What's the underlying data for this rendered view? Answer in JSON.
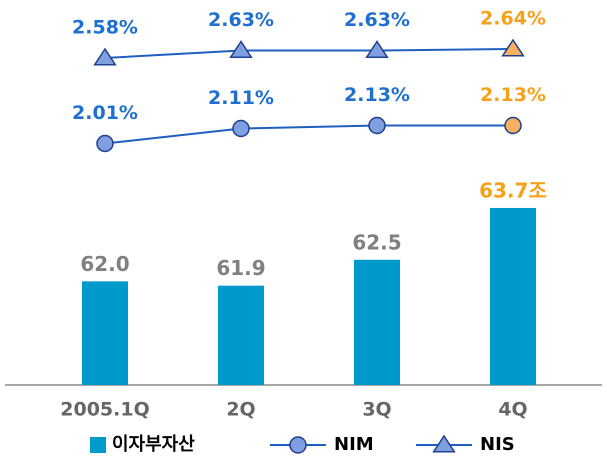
{
  "chart_data": {
    "type": "bar_line",
    "categories": [
      "2005.1Q",
      "2Q",
      "3Q",
      "4Q"
    ],
    "ylim": [
      59.6,
      64.0
    ],
    "y2lim": [
      1.9,
      2.7
    ],
    "series": [
      {
        "name": "이자부자산",
        "type": "bar",
        "axis": "y",
        "color": "#0099cc",
        "values": [
          62.0,
          61.9,
          62.5,
          63.7
        ],
        "value_labels": [
          "62.0",
          "61.9",
          "62.5",
          "63.7조"
        ],
        "label_colors": [
          "#808080",
          "#808080",
          "#808080",
          "#f7a01a"
        ]
      },
      {
        "name": "NIM",
        "type": "line",
        "marker": "circle",
        "axis": "y2",
        "color": "#1f5fbf",
        "values": [
          2.01,
          2.11,
          2.13,
          2.13
        ],
        "value_labels": [
          "2.01%",
          "2.11%",
          "2.13%",
          "2.13%"
        ],
        "marker_colors": [
          "#7f9fe0",
          "#7f9fe0",
          "#7f9fe0",
          "#f7b060"
        ],
        "label_colors": [
          "#1f6fd0",
          "#1f6fd0",
          "#1f6fd0",
          "#f7a01a"
        ]
      },
      {
        "name": "NIS",
        "type": "line",
        "marker": "triangle",
        "axis": "y2",
        "color": "#1f5fbf",
        "values": [
          2.58,
          2.63,
          2.63,
          2.64
        ],
        "value_labels": [
          "2.58%",
          "2.63%",
          "2.63%",
          "2.64%"
        ],
        "marker_colors": [
          "#7f9fe0",
          "#7f9fe0",
          "#7f9fe0",
          "#f7b060"
        ],
        "label_colors": [
          "#1f6fd0",
          "#1f6fd0",
          "#1f6fd0",
          "#f7a01a"
        ]
      }
    ]
  }
}
